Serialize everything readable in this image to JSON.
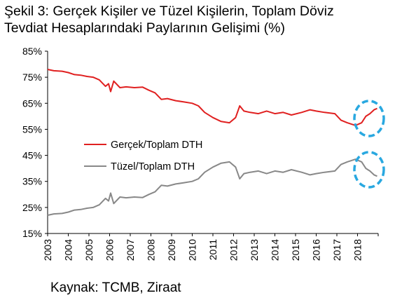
{
  "title_line1": "Şekil 3: Gerçek Kişiler ve Tüzel Kişilerin, Toplam Döviz",
  "title_line2": "Tevdiat Hesaplarındaki Paylarının Gelişimi (%)",
  "source": "Kaynak: TCMB, Ziraat",
  "chart_data": {
    "type": "line",
    "yticks": [
      "15%",
      "25%",
      "35%",
      "45%",
      "55%",
      "65%",
      "75%",
      "85%"
    ],
    "ylim": [
      15,
      85
    ],
    "xticks": [
      "2003",
      "2004",
      "2005",
      "2006",
      "2007",
      "2008",
      "2009",
      "2010",
      "2011",
      "2012",
      "2013",
      "2014",
      "2015",
      "2016",
      "2017",
      "2018"
    ],
    "xlim": [
      2003,
      2019
    ],
    "grid": false,
    "legend_position": "center-left",
    "series": [
      {
        "name": "Gerçek/Toplam DTH",
        "color": "#e02020",
        "points": [
          [
            2003.0,
            78.0
          ],
          [
            2003.3,
            77.5
          ],
          [
            2003.7,
            77.3
          ],
          [
            2004.0,
            76.8
          ],
          [
            2004.3,
            76.0
          ],
          [
            2004.6,
            75.8
          ],
          [
            2004.9,
            75.3
          ],
          [
            2005.2,
            75.0
          ],
          [
            2005.5,
            74.0
          ],
          [
            2005.8,
            71.5
          ],
          [
            2005.95,
            72.5
          ],
          [
            2006.05,
            69.5
          ],
          [
            2006.2,
            73.5
          ],
          [
            2006.5,
            71.0
          ],
          [
            2006.8,
            71.3
          ],
          [
            2007.2,
            71.0
          ],
          [
            2007.6,
            71.2
          ],
          [
            2007.9,
            70.0
          ],
          [
            2008.2,
            69.0
          ],
          [
            2008.5,
            66.5
          ],
          [
            2008.8,
            66.8
          ],
          [
            2009.2,
            66.0
          ],
          [
            2009.6,
            65.5
          ],
          [
            2010.0,
            65.0
          ],
          [
            2010.3,
            64.0
          ],
          [
            2010.6,
            61.5
          ],
          [
            2011.0,
            59.5
          ],
          [
            2011.4,
            58.0
          ],
          [
            2011.8,
            57.5
          ],
          [
            2012.1,
            59.5
          ],
          [
            2012.3,
            64.0
          ],
          [
            2012.5,
            62.0
          ],
          [
            2012.8,
            61.5
          ],
          [
            2013.2,
            61.0
          ],
          [
            2013.6,
            62.0
          ],
          [
            2014.0,
            61.0
          ],
          [
            2014.4,
            61.5
          ],
          [
            2014.8,
            60.5
          ],
          [
            2015.3,
            61.5
          ],
          [
            2015.7,
            62.5
          ],
          [
            2016.0,
            62.0
          ],
          [
            2016.4,
            61.5
          ],
          [
            2016.9,
            61.0
          ],
          [
            2017.2,
            58.5
          ],
          [
            2017.5,
            57.5
          ],
          [
            2017.9,
            56.5
          ],
          [
            2018.2,
            57.5
          ],
          [
            2018.4,
            60.0
          ],
          [
            2018.6,
            61.0
          ],
          [
            2018.8,
            62.5
          ],
          [
            2018.95,
            63.0
          ]
        ]
      },
      {
        "name": "Tüzel/Toplam DTH",
        "color": "#888888",
        "points": [
          [
            2003.0,
            22.0
          ],
          [
            2003.3,
            22.5
          ],
          [
            2003.7,
            22.7
          ],
          [
            2004.0,
            23.2
          ],
          [
            2004.3,
            24.0
          ],
          [
            2004.6,
            24.2
          ],
          [
            2004.9,
            24.7
          ],
          [
            2005.2,
            25.0
          ],
          [
            2005.5,
            26.0
          ],
          [
            2005.8,
            28.5
          ],
          [
            2005.95,
            27.5
          ],
          [
            2006.05,
            30.5
          ],
          [
            2006.2,
            26.5
          ],
          [
            2006.5,
            29.0
          ],
          [
            2006.8,
            28.7
          ],
          [
            2007.2,
            29.0
          ],
          [
            2007.6,
            28.8
          ],
          [
            2007.9,
            30.0
          ],
          [
            2008.2,
            31.0
          ],
          [
            2008.5,
            33.5
          ],
          [
            2008.8,
            33.2
          ],
          [
            2009.2,
            34.0
          ],
          [
            2009.6,
            34.5
          ],
          [
            2010.0,
            35.0
          ],
          [
            2010.3,
            36.0
          ],
          [
            2010.6,
            38.5
          ],
          [
            2011.0,
            40.5
          ],
          [
            2011.4,
            42.0
          ],
          [
            2011.8,
            42.5
          ],
          [
            2012.1,
            40.5
          ],
          [
            2012.3,
            36.0
          ],
          [
            2012.5,
            38.0
          ],
          [
            2012.8,
            38.5
          ],
          [
            2013.2,
            39.0
          ],
          [
            2013.6,
            38.0
          ],
          [
            2014.0,
            39.0
          ],
          [
            2014.4,
            38.5
          ],
          [
            2014.8,
            39.5
          ],
          [
            2015.3,
            38.5
          ],
          [
            2015.7,
            37.5
          ],
          [
            2016.0,
            38.0
          ],
          [
            2016.4,
            38.5
          ],
          [
            2016.9,
            39.0
          ],
          [
            2017.2,
            41.5
          ],
          [
            2017.5,
            42.5
          ],
          [
            2017.9,
            43.5
          ],
          [
            2018.2,
            42.5
          ],
          [
            2018.4,
            40.0
          ],
          [
            2018.6,
            39.0
          ],
          [
            2018.8,
            37.5
          ],
          [
            2018.95,
            37.0
          ]
        ]
      }
    ]
  }
}
